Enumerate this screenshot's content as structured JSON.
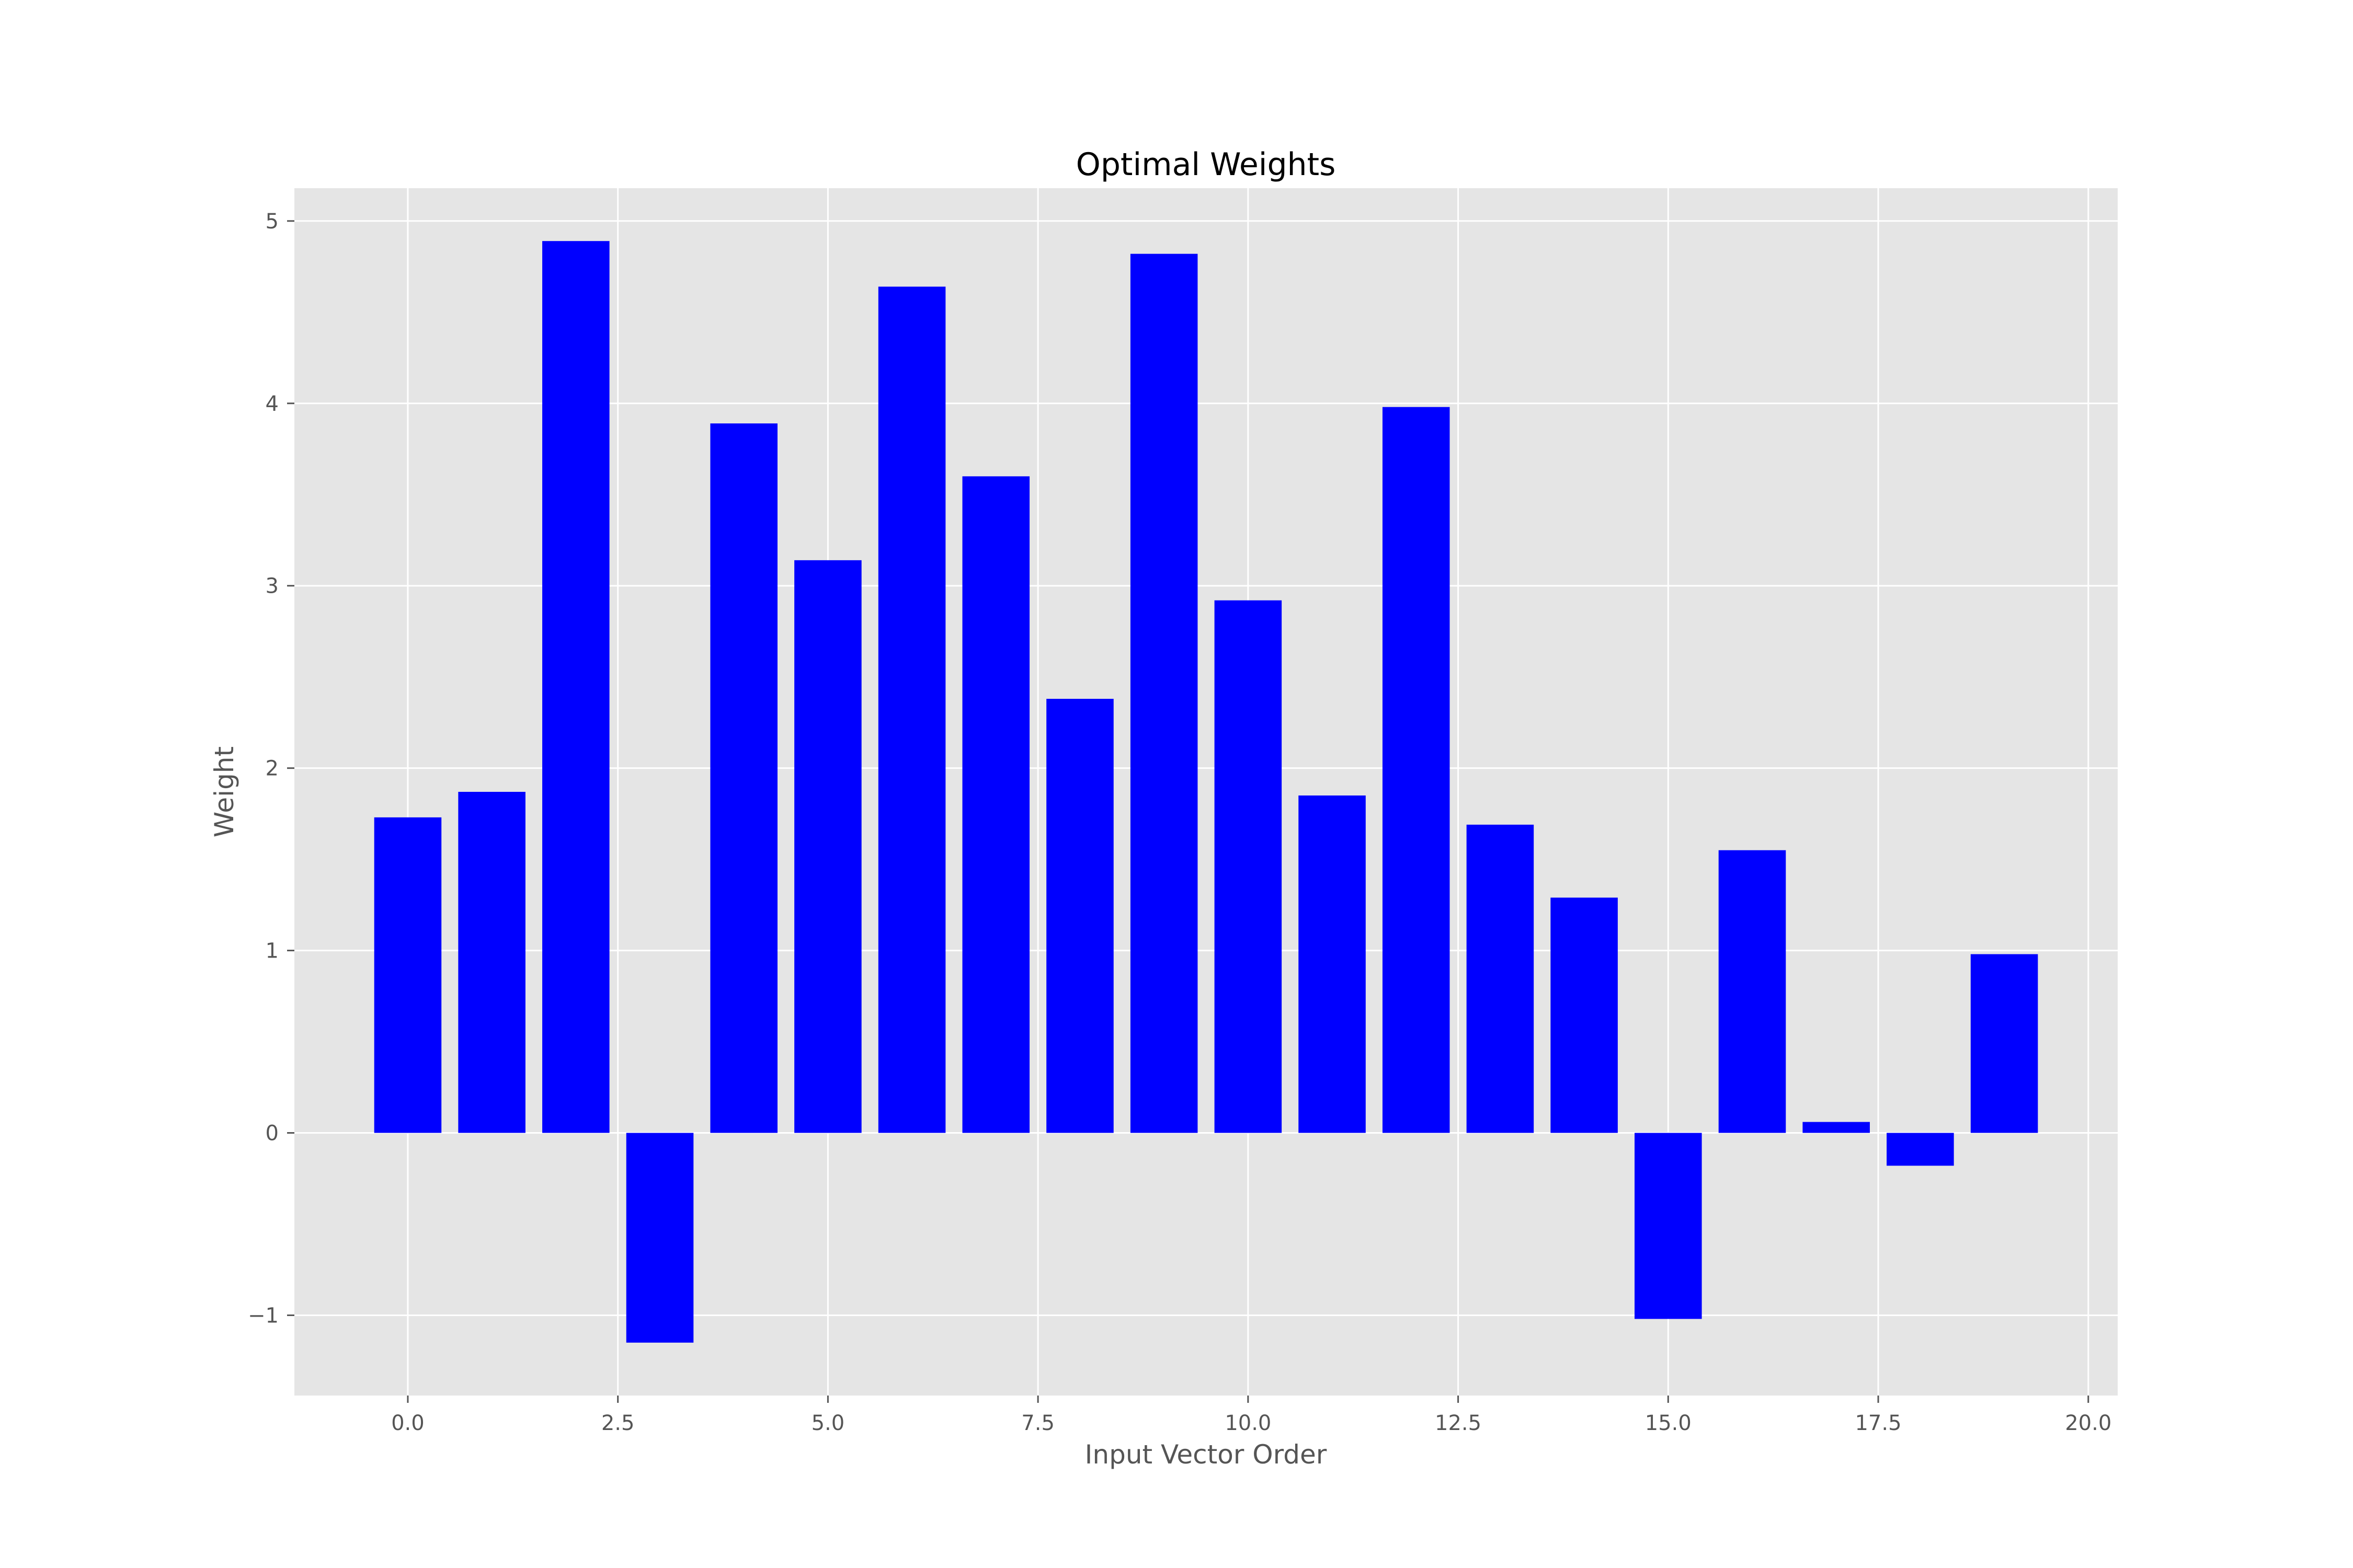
{
  "chart_data": {
    "type": "bar",
    "title": "Optimal Weights",
    "xlabel": "Input Vector Order",
    "ylabel": "Weight",
    "x": [
      0,
      1,
      2,
      3,
      4,
      5,
      6,
      7,
      8,
      9,
      10,
      11,
      12,
      13,
      14,
      15,
      16,
      17,
      18,
      19
    ],
    "values": [
      1.73,
      1.87,
      4.89,
      -1.15,
      3.89,
      3.14,
      4.64,
      3.6,
      2.38,
      4.82,
      2.92,
      1.85,
      3.98,
      1.69,
      1.29,
      -1.02,
      1.55,
      0.06,
      -0.18,
      0.98
    ],
    "xlim": [
      -1.35,
      20.35
    ],
    "ylim": [
      -1.44,
      5.18
    ],
    "xticks": [
      0,
      2.5,
      5,
      7.5,
      10,
      12.5,
      15,
      17.5,
      20
    ],
    "xtick_labels": [
      "0.0",
      "2.5",
      "5.0",
      "7.5",
      "10.0",
      "12.5",
      "15.0",
      "17.5",
      "20.0"
    ],
    "yticks": [
      -1,
      0,
      1,
      2,
      3,
      4,
      5
    ],
    "ytick_labels": [
      "−1",
      "0",
      "1",
      "2",
      "3",
      "4",
      "5"
    ],
    "bar_color": "#0000ff",
    "background_color": "#e5e5e5",
    "grid": true
  }
}
